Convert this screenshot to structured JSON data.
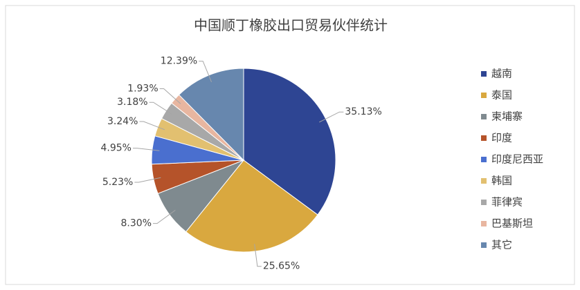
{
  "chart_data": {
    "type": "pie",
    "title": "中国顺丁橡胶出口贸易伙伴统计",
    "categories": [
      "越南",
      "泰国",
      "柬埔寨",
      "印度",
      "印度尼西亚",
      "韩国",
      "菲律宾",
      "巴基斯坦",
      "其它"
    ],
    "values": [
      35.13,
      25.65,
      8.3,
      5.23,
      4.95,
      3.24,
      3.18,
      1.93,
      12.39
    ],
    "value_labels": [
      "35.13%",
      "25.65%",
      "8.30%",
      "5.23%",
      "4.95%",
      "3.24%",
      "3.18%",
      "1.93%",
      "12.39%"
    ],
    "colors": [
      "#2e4593",
      "#d9a83f",
      "#7f8a8f",
      "#b5532a",
      "#4a6fcf",
      "#e2c070",
      "#a8a8a8",
      "#e8b6a0",
      "#6787ae"
    ],
    "legend": "right"
  }
}
